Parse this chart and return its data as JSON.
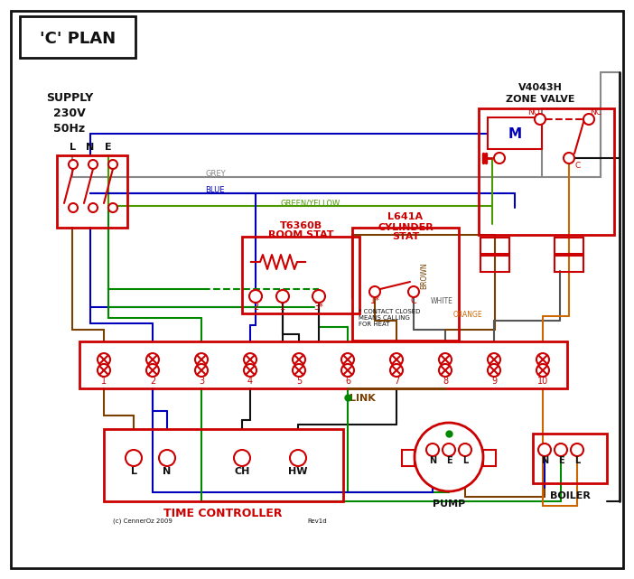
{
  "title": "'C' PLAN",
  "RED": "#cc0000",
  "BLUE": "#0000bb",
  "GREEN": "#008800",
  "GY": "#4a9900",
  "GREY": "#888888",
  "BROWN": "#7B3F00",
  "ORANGE": "#cc6600",
  "BLACK": "#111111",
  "WHITE_W": "#555555",
  "supply_text": [
    "SUPPLY",
    "230V",
    "50Hz"
  ],
  "lne": [
    "L",
    "N",
    "E"
  ],
  "zone_valve_line1": "V4043H",
  "zone_valve_line2": "ZONE VALVE",
  "room_stat_line1": "T6360B",
  "room_stat_line2": "ROOM STAT",
  "cyl_stat_line1": "L641A",
  "cyl_stat_line2": "CYLINDER",
  "cyl_stat_line3": "STAT",
  "tc_label": "TIME CONTROLLER",
  "pump_label": "PUMP",
  "boiler_label": "BOILER",
  "link_label": "LINK",
  "no_lbl": "NO",
  "nc_lbl": "NC",
  "c_lbl": "C",
  "m_lbl": "M",
  "tc_terms": [
    "L",
    "N",
    "CH",
    "HW"
  ],
  "pump_terms": [
    "N",
    "E",
    "L"
  ],
  "boiler_terms": [
    "N",
    "E",
    "L"
  ],
  "term_nums": [
    "1",
    "2",
    "3",
    "4",
    "5",
    "6",
    "7",
    "8",
    "9",
    "10"
  ],
  "contact_note": "* CONTACT CLOSED\nMEANS CALLING\nFOR HEAT",
  "grey_lbl": "GREY",
  "blue_lbl": "BLUE",
  "gy_lbl": "GREEN/YELLOW",
  "brown_lbl": "BROWN",
  "white_lbl": "WHITE",
  "orange_lbl": "ORANGE",
  "copyright": "(c) CennerOz 2009",
  "rev": "Rev1d"
}
